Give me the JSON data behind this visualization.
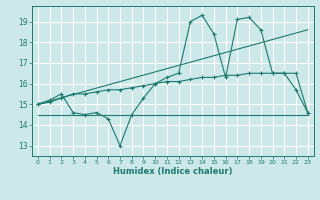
{
  "background_color": "#cce8e8",
  "grid_color": "#ffffff",
  "line_color": "#1a7a6e",
  "xlabel": "Humidex (Indice chaleur)",
  "xlim": [
    -0.5,
    23.5
  ],
  "ylim": [
    12.5,
    19.75
  ],
  "yticks": [
    13,
    14,
    15,
    16,
    17,
    18,
    19
  ],
  "xticks": [
    0,
    1,
    2,
    3,
    4,
    5,
    6,
    7,
    8,
    9,
    10,
    11,
    12,
    13,
    14,
    15,
    16,
    17,
    18,
    19,
    20,
    21,
    22,
    23
  ],
  "series": [
    {
      "x": [
        0,
        1,
        2,
        3,
        4,
        5,
        6,
        7,
        8,
        9,
        10,
        11,
        12,
        13,
        14,
        15,
        16,
        17,
        18,
        19,
        20,
        21,
        22,
        23
      ],
      "y": [
        15.0,
        15.2,
        15.5,
        14.6,
        14.5,
        14.6,
        14.3,
        13.0,
        14.5,
        15.3,
        16.0,
        16.3,
        16.5,
        19.0,
        19.3,
        18.4,
        16.3,
        19.1,
        19.2,
        18.6,
        16.5,
        16.5,
        15.7,
        14.6
      ],
      "marker": "+"
    },
    {
      "x": [
        0,
        1,
        2,
        3,
        4,
        5,
        6,
        7,
        8,
        9,
        10,
        11,
        12,
        13,
        14,
        15,
        16,
        17,
        18,
        19,
        20,
        21,
        22,
        23
      ],
      "y": [
        15.0,
        15.1,
        15.3,
        15.5,
        15.5,
        15.6,
        15.7,
        15.7,
        15.8,
        15.9,
        16.0,
        16.1,
        16.1,
        16.2,
        16.3,
        16.3,
        16.4,
        16.4,
        16.5,
        16.5,
        16.5,
        16.5,
        16.5,
        14.6
      ],
      "marker": "+"
    },
    {
      "x": [
        0,
        23
      ],
      "y": [
        15.0,
        18.6
      ],
      "marker": null
    },
    {
      "x": [
        0,
        23
      ],
      "y": [
        14.5,
        14.5
      ],
      "marker": null
    }
  ]
}
